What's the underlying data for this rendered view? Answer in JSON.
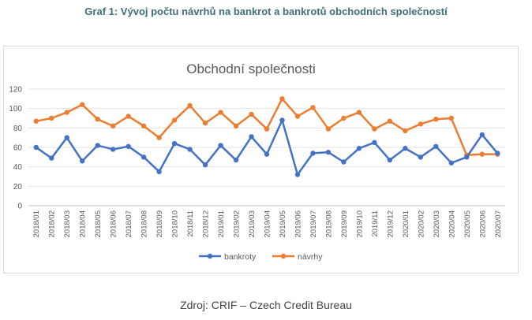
{
  "heading": "Graf 1: Vývoj počtu návrhů na bankrot a bankrotů obchodních společností",
  "source": "Zdroj: CRIF – Czech Credit Bureau",
  "chart_data": {
    "type": "line",
    "title": "Obchodní společnosti",
    "xlabel": "",
    "ylabel": "",
    "ylim": [
      0,
      120
    ],
    "yticks": [
      0,
      20,
      40,
      60,
      80,
      100,
      120
    ],
    "grid": true,
    "legend_position": "bottom",
    "categories": [
      "2018/01",
      "2018/02",
      "2018/03",
      "2018/04",
      "2018/05",
      "2018/06",
      "2018/07",
      "2018/08",
      "2018/09",
      "2018/10",
      "2018/11",
      "2018/12",
      "2019/01",
      "2019/02",
      "2019/03",
      "2019/04",
      "2019/05",
      "2019/06",
      "2019/07",
      "2019/08",
      "2019/09",
      "2019/10",
      "2019/11",
      "2019/12",
      "2020/01",
      "2020/02",
      "2020/03",
      "2020/04",
      "2020/05",
      "2020/06",
      "2020/07"
    ],
    "series": [
      {
        "name": "bankroty",
        "color": "#4472c4",
        "values": [
          60,
          49,
          70,
          46,
          62,
          58,
          61,
          50,
          35,
          64,
          58,
          42,
          62,
          47,
          71,
          53,
          88,
          32,
          54,
          55,
          45,
          59,
          65,
          47,
          59,
          50,
          61,
          44,
          50,
          73,
          54
        ]
      },
      {
        "name": "návrhy",
        "color": "#ed7d31",
        "values": [
          87,
          90,
          96,
          104,
          89,
          82,
          92,
          82,
          70,
          88,
          103,
          85,
          96,
          82,
          94,
          79,
          110,
          92,
          101,
          79,
          90,
          96,
          79,
          87,
          77,
          84,
          89,
          90,
          52,
          53,
          53
        ]
      }
    ]
  }
}
